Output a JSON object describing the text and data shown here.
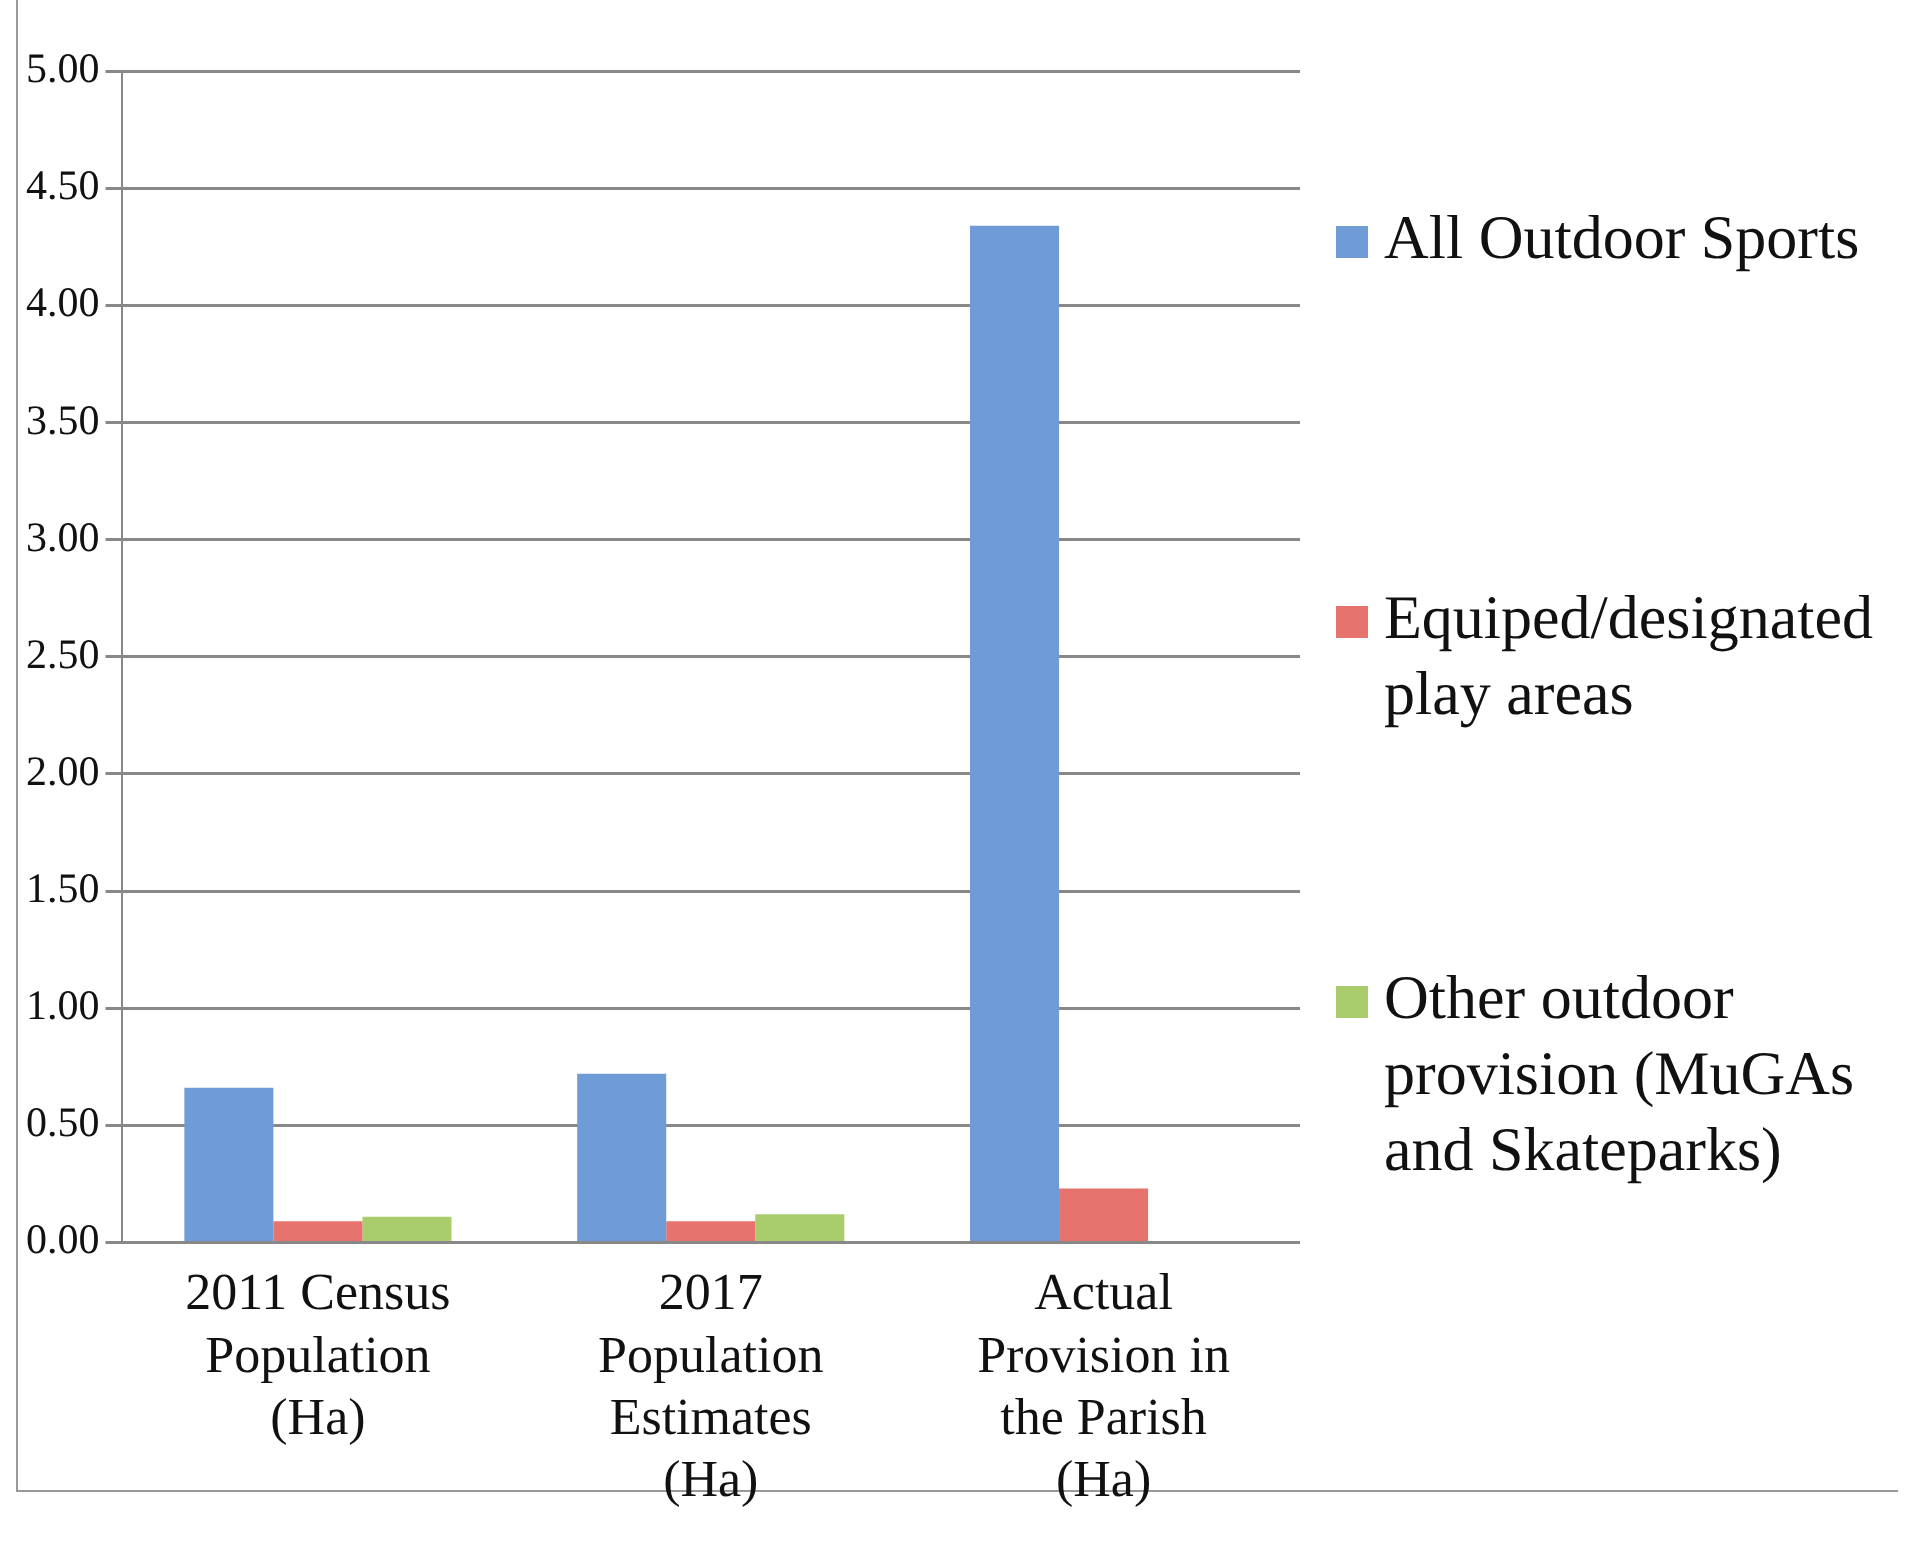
{
  "chart_data": {
    "type": "bar",
    "categories": [
      "2011 Census Population (Ha)",
      "2017 Population Estimates (Ha)",
      "Actual Provision in the Parish (Ha)"
    ],
    "series": [
      {
        "name": "All Outdoor Sports",
        "color": "#6f9bd6",
        "values": [
          0.66,
          0.72,
          4.34
        ]
      },
      {
        "name": "Equiped/designated play areas",
        "color": "#e7736e",
        "values": [
          0.09,
          0.09,
          0.23
        ]
      },
      {
        "name": "Other outdoor provision (MuGAs and Skateparks)",
        "color": "#a9cd6c",
        "values": [
          0.11,
          0.12,
          null
        ]
      }
    ],
    "ylim": [
      0,
      5
    ],
    "yticks": [
      {
        "value": 0,
        "label": "0.00"
      },
      {
        "value": 0.5,
        "label": "0.50"
      },
      {
        "value": 1,
        "label": "1.00"
      },
      {
        "value": 1.5,
        "label": "1.50"
      },
      {
        "value": 2,
        "label": "2.00"
      },
      {
        "value": 2.5,
        "label": "2.50"
      },
      {
        "value": 3,
        "label": "3.00"
      },
      {
        "value": 3.5,
        "label": "3.50"
      },
      {
        "value": 4,
        "label": "4.00"
      },
      {
        "value": 4.5,
        "label": "4.50"
      },
      {
        "value": 5,
        "label": "5.00"
      }
    ],
    "grid": "y",
    "legend": "right"
  }
}
